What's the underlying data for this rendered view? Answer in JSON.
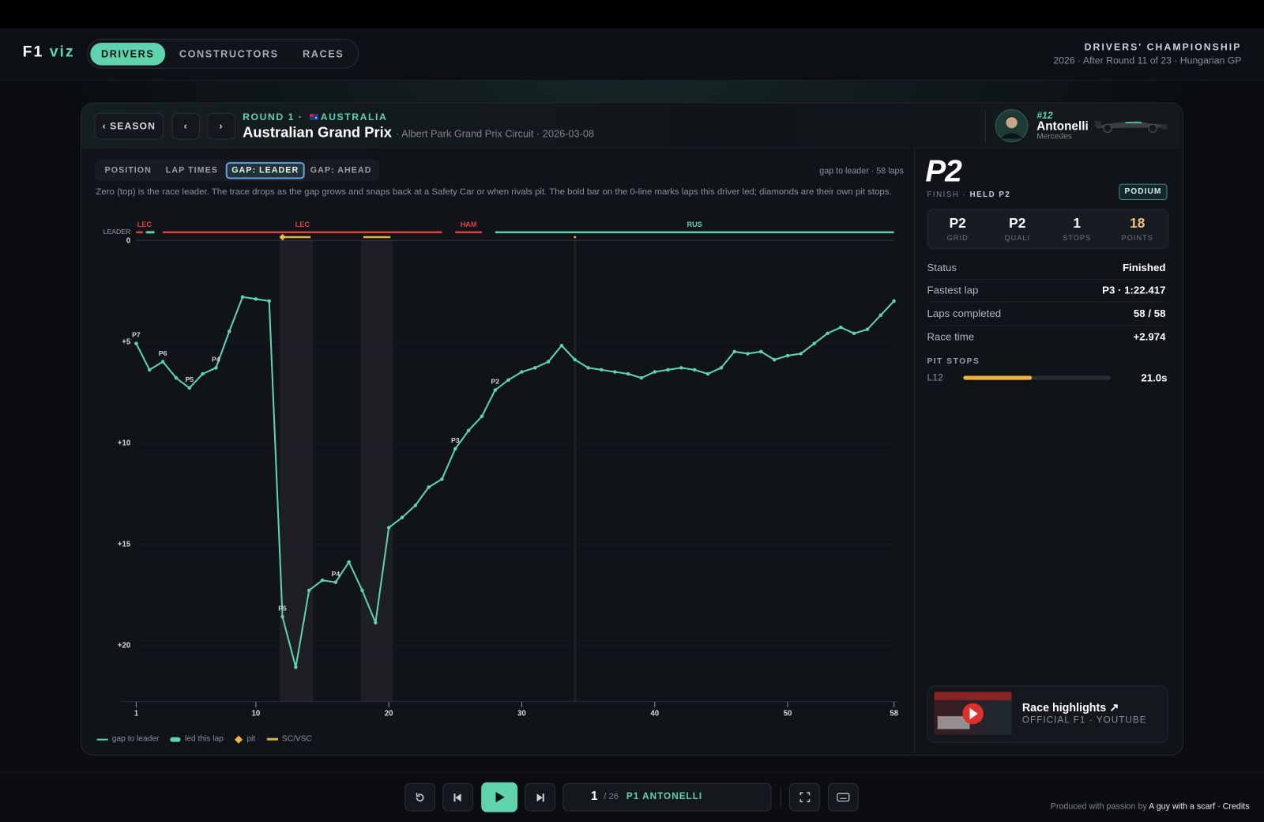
{
  "header": {
    "logo_main": "F1",
    "logo_accent": "viz",
    "tabs": [
      "DRIVERS",
      "CONSTRUCTORS",
      "RACES"
    ],
    "active_tab": 0,
    "title": "DRIVERS' CHAMPIONSHIP",
    "subtitle": "2026 · After Round 11 of 23 · Hungarian GP"
  },
  "race": {
    "back": "‹ SEASON",
    "prev": "‹",
    "next": "›",
    "round": "ROUND 1 ·",
    "country": "AUSTRALIA",
    "name": "Australian Grand Prix",
    "details": "· Albert Park Grand Prix Circuit · 2026-03-08"
  },
  "driver": {
    "number": "#12",
    "name": "Antonelli",
    "team": "Mercedes"
  },
  "chart_tabs": {
    "tabs": [
      "POSITION",
      "LAP TIMES",
      "GAP: LEADER",
      "GAP: AHEAD"
    ],
    "active": 2,
    "info": "gap to leader · 58 laps",
    "description": "Zero (top) is the race leader. The trace drops as the gap grows and snaps back at a Safety Car or when rivals pit. The bold bar on the 0-line marks laps this driver led; diamonds are their own pit stops."
  },
  "chart_data": {
    "type": "line",
    "x": [
      1,
      2,
      3,
      4,
      5,
      6,
      7,
      8,
      9,
      10,
      11,
      12,
      13,
      14,
      15,
      16,
      17,
      18,
      19,
      20,
      21,
      22,
      23,
      24,
      25,
      26,
      27,
      28,
      29,
      30,
      31,
      32,
      33,
      34,
      35,
      36,
      37,
      38,
      39,
      40,
      41,
      42,
      43,
      44,
      45,
      46,
      47,
      48,
      49,
      50,
      51,
      52,
      53,
      54,
      55,
      56,
      57,
      58
    ],
    "series": [
      {
        "name": "gap to leader",
        "color": "#5fd3ad",
        "values": [
          5.1,
          6.4,
          6.0,
          6.8,
          7.3,
          6.6,
          6.3,
          4.5,
          2.8,
          2.9,
          3.0,
          18.6,
          21.1,
          17.3,
          16.8,
          16.9,
          15.9,
          17.3,
          18.9,
          14.2,
          13.7,
          13.1,
          12.2,
          11.8,
          10.3,
          9.4,
          8.7,
          7.4,
          6.9,
          6.5,
          6.3,
          6.0,
          5.2,
          5.9,
          6.3,
          6.4,
          6.5,
          6.6,
          6.8,
          6.5,
          6.4,
          6.3,
          6.4,
          6.6,
          6.3,
          5.5,
          5.6,
          5.5,
          5.9,
          5.7,
          5.6,
          5.1,
          4.6,
          4.3,
          4.6,
          4.4,
          3.7,
          3.0
        ]
      }
    ],
    "xlim": [
      1,
      58
    ],
    "xticks": [
      1,
      10,
      20,
      30,
      40,
      50,
      58
    ],
    "ylim": [
      0,
      22.8
    ],
    "y_inverted": true,
    "yticks": [
      0,
      {
        "value": 5,
        "label": "+5"
      },
      {
        "value": 10,
        "label": "+10"
      },
      {
        "value": 15,
        "label": "+15"
      },
      {
        "value": 20,
        "label": "+20"
      }
    ],
    "grid": true,
    "leader_label": "LEADER",
    "leaders": [
      {
        "driver": "LEC",
        "from": 1,
        "to": 1.5,
        "color": "#e0413b"
      },
      {
        "driver": "LEC",
        "from": 3,
        "to": 24,
        "color": "#e0413b"
      },
      {
        "driver": "HAM",
        "from": 25,
        "to": 27,
        "color": "#e0413b"
      },
      {
        "driver": "RUS",
        "from": 28,
        "to": 58,
        "color": "#5fd3ad"
      }
    ],
    "led": {
      "name": "led this lap",
      "color": "#5fd3ad",
      "laps": [
        [
          1.8,
          2.3
        ]
      ]
    },
    "pits": {
      "name": "pit",
      "color": "#f0b443",
      "laps": [
        12
      ]
    },
    "sc": {
      "name": "SC/VSC",
      "color": "#e3b341",
      "periods": [
        [
          11.8,
          14.3
        ],
        [
          17.9,
          20.3
        ],
        [
          33.9,
          34.1
        ]
      ]
    },
    "annotations": [
      {
        "x": 1,
        "text": "P7"
      },
      {
        "x": 3,
        "text": "P6"
      },
      {
        "x": 5,
        "text": "P5"
      },
      {
        "x": 7,
        "text": "P4"
      },
      {
        "x": 12,
        "text": "P5"
      },
      {
        "x": 16,
        "text": "P4"
      },
      {
        "x": 25,
        "text": "P3"
      },
      {
        "x": 28,
        "text": "P2"
      }
    ]
  },
  "result": {
    "position": "P2",
    "finish": "FINISH ·",
    "held": "HELD P2",
    "badge": "PODIUM",
    "stats": [
      {
        "value": "P2",
        "label": "GRID"
      },
      {
        "value": "P2",
        "label": "QUALI"
      },
      {
        "value": 1,
        "label": "STOPS"
      },
      {
        "value": 18,
        "label": "POINTS"
      }
    ],
    "rows": [
      [
        "Status",
        "Finished"
      ],
      [
        "Fastest lap",
        "P3 · 1:22.417"
      ],
      [
        "Laps completed",
        "58 / 58"
      ],
      [
        "Race time",
        "+2.974"
      ]
    ],
    "pit_title": "PIT STOPS",
    "pit_stops": [
      {
        "lap": "L12",
        "duration": 21.0,
        "label": "21.0s"
      }
    ],
    "pit_scale": [
      0,
      45
    ]
  },
  "highlights": {
    "title": "Race highlights ↗",
    "source": "OFFICIAL F1 · YOUTUBE"
  },
  "player": {
    "current": 1,
    "total": "/ 26",
    "leader": "P1 ANTONELLI"
  },
  "footer": {
    "prefix": "Produced with passion by",
    "author": "A guy with a scarf",
    "credits": "· Credits"
  }
}
